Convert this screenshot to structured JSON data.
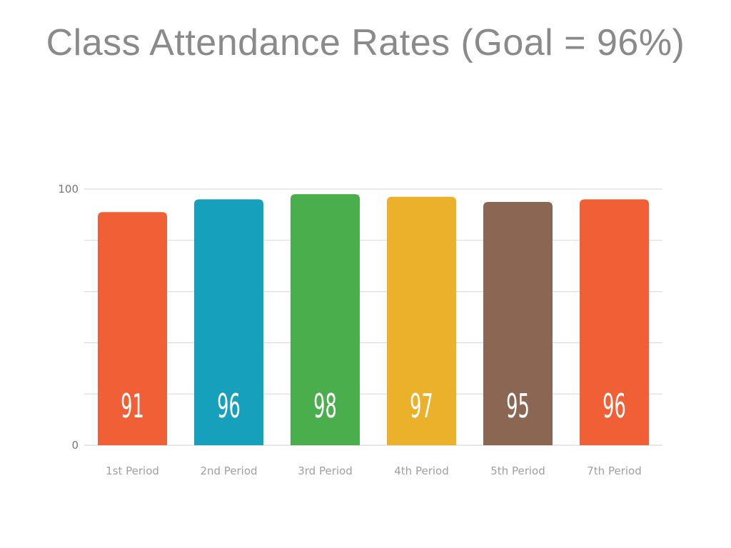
{
  "chart_data": {
    "type": "bar",
    "title": "Class Attendance Rates (Goal = 96%)",
    "categories": [
      "1st Period",
      "2nd Period",
      "3rd Period",
      "4th Period",
      "5th Period",
      "7th Period"
    ],
    "values": [
      91,
      96,
      98,
      97,
      95,
      96
    ],
    "data_labels": [
      "91",
      "96",
      "98",
      "97",
      "95",
      "96"
    ],
    "colors": [
      "#f05f35",
      "#16a0bb",
      "#49ae4b",
      "#ebb12a",
      "#8a6653",
      "#f05f35"
    ],
    "ylim": [
      0,
      100
    ],
    "yticks": [
      0,
      100
    ],
    "ytick_labels": [
      "0",
      "100"
    ],
    "grid": true,
    "grid_lines": 5,
    "xlabel": "",
    "ylabel": ""
  }
}
